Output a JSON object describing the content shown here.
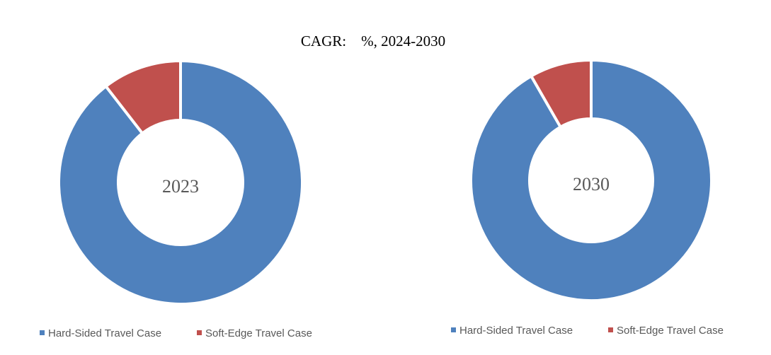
{
  "title": "CAGR:    %, 2024-2030",
  "chart_data": [
    {
      "type": "donut",
      "center_label": "2023",
      "categories": [
        "Hard-Sided Travel Case",
        "Soft-Edge Travel Case"
      ],
      "values": [
        89.5,
        10.5
      ],
      "colors": [
        "#4f81bd",
        "#c0504d"
      ]
    },
    {
      "type": "donut",
      "center_label": "2030",
      "categories": [
        "Hard-Sided Travel Case",
        "Soft-Edge Travel Case"
      ],
      "values": [
        91.7,
        8.3
      ],
      "colors": [
        "#4f81bd",
        "#c0504d"
      ]
    }
  ]
}
